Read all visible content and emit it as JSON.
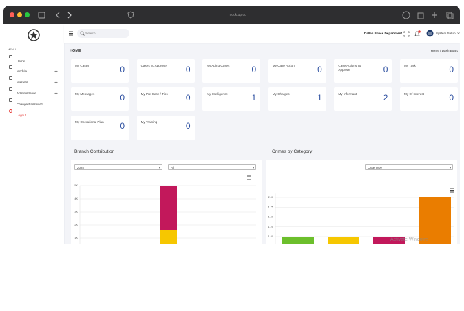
{
  "browser": {
    "url": "mock.up.co"
  },
  "header": {
    "search_placeholder": "Search...",
    "org": "Dallas Police Department",
    "user": "System Setup"
  },
  "sidebar": {
    "heading": "MENU",
    "items": [
      "Home",
      "Module",
      "Masters",
      "Administration",
      "Change Password",
      "Logout"
    ]
  },
  "page": {
    "title": "HOME",
    "breadcrumb": "Home / Dash Board"
  },
  "cards": [
    {
      "label": "My Cases",
      "value": 0
    },
    {
      "label": "Cases To Approve",
      "value": 0
    },
    {
      "label": "My Aging Cases",
      "value": 0
    },
    {
      "label": "My Case Action",
      "value": 0
    },
    {
      "label": "Case Actions To Approve",
      "value": 0
    },
    {
      "label": "My Task",
      "value": 0
    },
    {
      "label": "My Messages",
      "value": 0
    },
    {
      "label": "My Pre-Case / Tips",
      "value": 0
    },
    {
      "label": "My Intelligence",
      "value": 1
    },
    {
      "label": "My Charges",
      "value": 1
    },
    {
      "label": "My Informant",
      "value": 2
    },
    {
      "label": "My Of Interest",
      "value": 0
    },
    {
      "label": "My Operational Plan",
      "value": 0
    },
    {
      "label": "My Training",
      "value": 0
    }
  ],
  "branch_chart": {
    "type": "bar",
    "title": "Branch Contribution",
    "filters": [
      "2025",
      "All"
    ],
    "ylim": [
      0,
      5000
    ],
    "yticks": [
      {
        "value": 1000,
        "label": "1K"
      },
      {
        "value": 2000,
        "label": "2K"
      },
      {
        "value": 3000,
        "label": "3K"
      },
      {
        "value": 4000,
        "label": "4K"
      },
      {
        "value": 5000,
        "label": "5K"
      }
    ],
    "series": [
      {
        "color": "#f6c700",
        "values": [
          1600
        ]
      },
      {
        "color": "#c2185b",
        "values": [
          3400
        ]
      }
    ]
  },
  "category_chart": {
    "type": "bar",
    "title": "Crimes by Category",
    "filter": "Case Type",
    "ylim": [
      0,
      2.1
    ],
    "yticks": [
      {
        "value": 1,
        "label": "1.00"
      },
      {
        "value": 1.25,
        "label": "1.25"
      },
      {
        "value": 1.5,
        "label": "1.50"
      },
      {
        "value": 1.75,
        "label": "1.75"
      },
      {
        "value": 2,
        "label": "2.00"
      }
    ],
    "values": [
      1,
      1,
      1,
      2
    ],
    "colors": [
      "#6cbf2c",
      "#f6c700",
      "#c2185b",
      "#ea7d00"
    ]
  },
  "watermark": "Activate Windows"
}
